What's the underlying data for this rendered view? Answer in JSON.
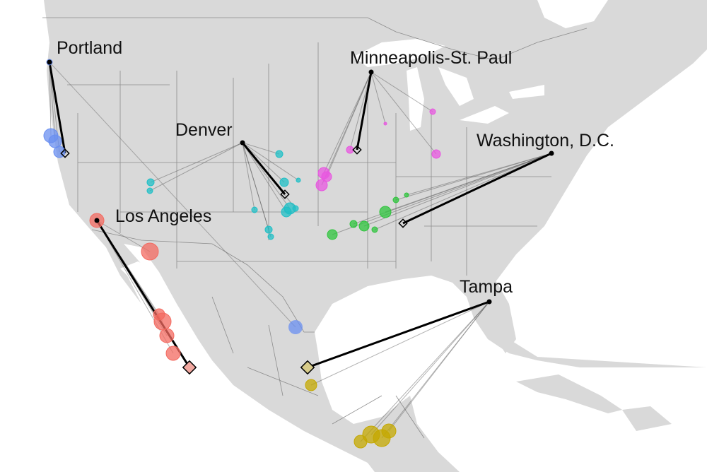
{
  "map": {
    "land_color": "#d9d9d9",
    "water_color": "#ffffff",
    "border_color": "#8c8c8c",
    "hubs": [
      {
        "id": "portland",
        "label": "Portland",
        "color": "#6a8ff0"
      },
      {
        "id": "denver",
        "label": "Denver",
        "color": "#1fbfc6"
      },
      {
        "id": "minneapolis",
        "label": "Minneapolis-St. Paul",
        "color": "#e855e0"
      },
      {
        "id": "washington",
        "label": "Washington, D.C.",
        "color": "#2ec43c"
      },
      {
        "id": "losangeles",
        "label": "Los Angeles",
        "color": "#f36a60"
      },
      {
        "id": "tampa",
        "label": "Tampa",
        "color": "#c4a800"
      }
    ]
  }
}
